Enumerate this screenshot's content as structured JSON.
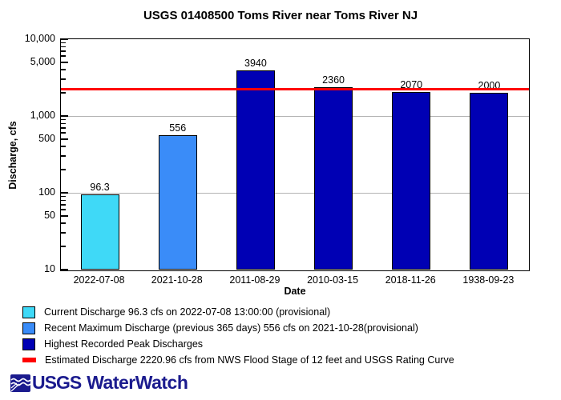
{
  "chart_data": {
    "type": "bar",
    "title": "USGS 01408500 Toms River near Toms River NJ",
    "xlabel": "Date",
    "ylabel": "Discharge, cfs",
    "y_scale": "log",
    "ylim": [
      10,
      10000
    ],
    "grid_on": true,
    "y_ticks": [
      {
        "value": 10000,
        "label": "10,000"
      },
      {
        "value": 5000,
        "label": "5,000"
      },
      {
        "value": 1000,
        "label": "1,000"
      },
      {
        "value": 500,
        "label": "500"
      },
      {
        "value": 100,
        "label": "100"
      },
      {
        "value": 50,
        "label": "50"
      },
      {
        "value": 10,
        "label": "10"
      }
    ],
    "grid_values": [
      1000,
      100
    ],
    "categories": [
      "2022-07-08",
      "2021-10-28",
      "2011-08-29",
      "2010-03-15",
      "2018-11-26",
      "1938-09-23"
    ],
    "values": [
      96.3,
      556,
      3940,
      2360,
      2070,
      2000
    ],
    "bar_labels": [
      "96.3",
      "556",
      "3940",
      "2360",
      "2070",
      "2000"
    ],
    "bar_colors": [
      "#3FD9F7",
      "#3A8CF8",
      "#0000B4",
      "#0000B4",
      "#0000B4",
      "#0000B4"
    ],
    "reference_line": {
      "value": 2220.96,
      "color": "#FF0000"
    }
  },
  "legend": {
    "items": [
      {
        "swatch": "square",
        "color": "#3FD9F7",
        "label": "Current Discharge 96.3 cfs on 2022-07-08 13:00:00 (provisional)"
      },
      {
        "swatch": "square",
        "color": "#3A8CF8",
        "label": "Recent Maximum Discharge (previous 365 days) 556 cfs on 2021-10-28(provisional)"
      },
      {
        "swatch": "square",
        "color": "#0000B4",
        "label": "Highest Recorded Peak Discharges"
      },
      {
        "swatch": "line",
        "color": "#FF0000",
        "label": "Estimated Discharge 2220.96 cfs from NWS Flood Stage of 12 feet and USGS Rating Curve"
      }
    ]
  },
  "footer": {
    "logo_text": "USGS",
    "brand": "WaterWatch",
    "color": "#1B1B8E"
  }
}
